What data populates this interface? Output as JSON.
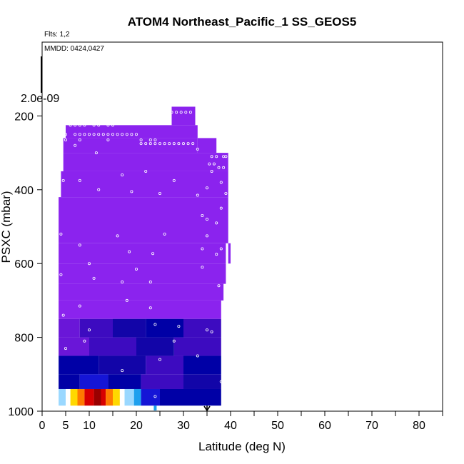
{
  "chart_data": {
    "type": "heatmap",
    "title": "ATOM4 Northeast_Pacific_1 SS_GEOS5",
    "flights_label": "Flts: 1,2",
    "dates_label": "MMDD: 0424,0427",
    "scale_label": "2.0e-09",
    "xlabel": "Latitude (deg N)",
    "ylabel": "PSXC (mbar)",
    "xlim": [
      0,
      85
    ],
    "ylim": [
      1000,
      0
    ],
    "y_reversed": true,
    "grid": false,
    "x_ticks": [
      0,
      5,
      10,
      20,
      30,
      40,
      50,
      60,
      70,
      80
    ],
    "x_minor_ticks": [
      15,
      25,
      35,
      45,
      55,
      65,
      75,
      85
    ],
    "y_ticks": [
      200,
      400,
      600,
      800,
      1000
    ],
    "palette": {
      "violet": "#8b23ee",
      "purple": "#6a16d8",
      "indigo": "#3d0bc0",
      "navy": "#1205a8",
      "darkblue": "#0000a6",
      "blue": "#1515d6",
      "sky": "#1ea0ee",
      "lightblue": "#9ad8ff",
      "white": "#ffffff",
      "yellow": "#ffd800",
      "orange": "#ff7a00",
      "red": "#d80000",
      "darkred": "#9a0000"
    },
    "cells": [
      {
        "x0": 27.5,
        "x1": 32.5,
        "y0": 175,
        "y1": 225,
        "c": "violet"
      },
      {
        "x0": 5,
        "x1": 27.5,
        "y0": 225,
        "y1": 260,
        "c": "violet"
      },
      {
        "x0": 27.5,
        "x1": 33,
        "y0": 225,
        "y1": 260,
        "c": "violet"
      },
      {
        "x0": 4.5,
        "x1": 33,
        "y0": 260,
        "y1": 300,
        "c": "violet"
      },
      {
        "x0": 33,
        "x1": 37,
        "y0": 260,
        "y1": 300,
        "c": "violet"
      },
      {
        "x0": 4.5,
        "x1": 39.5,
        "y0": 300,
        "y1": 350,
        "c": "violet"
      },
      {
        "x0": 4,
        "x1": 39.5,
        "y0": 350,
        "y1": 420,
        "c": "violet"
      },
      {
        "x0": 3.5,
        "x1": 39.5,
        "y0": 420,
        "y1": 500,
        "c": "violet"
      },
      {
        "x0": 3.5,
        "x1": 39.5,
        "y0": 500,
        "y1": 545,
        "c": "violet"
      },
      {
        "x0": 39.5,
        "x1": 40,
        "y0": 545,
        "y1": 600,
        "c": "violet"
      },
      {
        "x0": 3.5,
        "x1": 39,
        "y0": 545,
        "y1": 600,
        "c": "violet"
      },
      {
        "x0": 3.5,
        "x1": 39,
        "y0": 600,
        "y1": 655,
        "c": "violet"
      },
      {
        "x0": 3.5,
        "x1": 38.5,
        "y0": 655,
        "y1": 700,
        "c": "violet"
      },
      {
        "x0": 3.5,
        "x1": 38,
        "y0": 700,
        "y1": 750,
        "c": "violet"
      },
      {
        "x0": 3.5,
        "x1": 8,
        "y0": 750,
        "y1": 800,
        "c": "purple"
      },
      {
        "x0": 8,
        "x1": 15,
        "y0": 750,
        "y1": 800,
        "c": "indigo"
      },
      {
        "x0": 15,
        "x1": 22,
        "y0": 750,
        "y1": 800,
        "c": "navy"
      },
      {
        "x0": 22,
        "x1": 30,
        "y0": 750,
        "y1": 800,
        "c": "darkblue"
      },
      {
        "x0": 30,
        "x1": 38,
        "y0": 750,
        "y1": 800,
        "c": "indigo"
      },
      {
        "x0": 3.5,
        "x1": 10,
        "y0": 800,
        "y1": 850,
        "c": "purple"
      },
      {
        "x0": 10,
        "x1": 20,
        "y0": 800,
        "y1": 850,
        "c": "indigo"
      },
      {
        "x0": 20,
        "x1": 28,
        "y0": 800,
        "y1": 850,
        "c": "navy"
      },
      {
        "x0": 28,
        "x1": 38,
        "y0": 800,
        "y1": 850,
        "c": "indigo"
      },
      {
        "x0": 3.5,
        "x1": 12,
        "y0": 850,
        "y1": 900,
        "c": "darkblue"
      },
      {
        "x0": 12,
        "x1": 22,
        "y0": 850,
        "y1": 900,
        "c": "navy"
      },
      {
        "x0": 22,
        "x1": 30,
        "y0": 850,
        "y1": 900,
        "c": "indigo"
      },
      {
        "x0": 30,
        "x1": 38,
        "y0": 850,
        "y1": 900,
        "c": "darkblue"
      },
      {
        "x0": 3.5,
        "x1": 8,
        "y0": 900,
        "y1": 940,
        "c": "darkblue"
      },
      {
        "x0": 8,
        "x1": 14,
        "y0": 900,
        "y1": 940,
        "c": "blue"
      },
      {
        "x0": 14,
        "x1": 21,
        "y0": 900,
        "y1": 940,
        "c": "darkblue"
      },
      {
        "x0": 21,
        "x1": 30,
        "y0": 900,
        "y1": 940,
        "c": "indigo"
      },
      {
        "x0": 30,
        "x1": 38,
        "y0": 900,
        "y1": 940,
        "c": "navy"
      },
      {
        "x0": 3.5,
        "x1": 5,
        "y0": 940,
        "y1": 985,
        "c": "lightblue"
      },
      {
        "x0": 5,
        "x1": 6,
        "y0": 940,
        "y1": 985,
        "c": "white"
      },
      {
        "x0": 6,
        "x1": 7.5,
        "y0": 940,
        "y1": 985,
        "c": "yellow"
      },
      {
        "x0": 7.5,
        "x1": 9,
        "y0": 940,
        "y1": 985,
        "c": "orange"
      },
      {
        "x0": 9,
        "x1": 11,
        "y0": 940,
        "y1": 985,
        "c": "red"
      },
      {
        "x0": 11,
        "x1": 12.5,
        "y0": 940,
        "y1": 985,
        "c": "darkred"
      },
      {
        "x0": 12.5,
        "x1": 13.5,
        "y0": 940,
        "y1": 985,
        "c": "red"
      },
      {
        "x0": 13.5,
        "x1": 15,
        "y0": 940,
        "y1": 985,
        "c": "orange"
      },
      {
        "x0": 15,
        "x1": 16.5,
        "y0": 940,
        "y1": 985,
        "c": "yellow"
      },
      {
        "x0": 16.5,
        "x1": 17.5,
        "y0": 940,
        "y1": 985,
        "c": "white"
      },
      {
        "x0": 17.5,
        "x1": 19.5,
        "y0": 940,
        "y1": 985,
        "c": "lightblue"
      },
      {
        "x0": 19.5,
        "x1": 21,
        "y0": 940,
        "y1": 985,
        "c": "sky"
      },
      {
        "x0": 21,
        "x1": 25,
        "y0": 940,
        "y1": 985,
        "c": "blue"
      },
      {
        "x0": 25,
        "x1": 38,
        "y0": 940,
        "y1": 985,
        "c": "darkblue"
      }
    ],
    "points": [
      [
        27.5,
        190
      ],
      [
        28.5,
        190
      ],
      [
        29.5,
        190
      ],
      [
        30.5,
        190
      ],
      [
        31.5,
        190
      ],
      [
        27,
        210
      ],
      [
        6,
        225
      ],
      [
        7,
        225
      ],
      [
        8,
        225
      ],
      [
        9,
        225
      ],
      [
        11,
        225
      ],
      [
        12,
        225
      ],
      [
        14,
        225
      ],
      [
        15,
        225
      ],
      [
        5,
        250
      ],
      [
        7,
        250
      ],
      [
        8,
        250
      ],
      [
        9,
        250
      ],
      [
        10,
        250
      ],
      [
        11,
        250
      ],
      [
        12,
        250
      ],
      [
        13,
        250
      ],
      [
        14,
        250
      ],
      [
        15,
        250
      ],
      [
        16,
        250
      ],
      [
        17,
        250
      ],
      [
        18,
        250
      ],
      [
        19,
        250
      ],
      [
        20,
        250
      ],
      [
        5,
        265
      ],
      [
        8,
        265
      ],
      [
        14,
        265
      ],
      [
        21,
        265
      ],
      [
        23,
        265
      ],
      [
        24,
        265
      ],
      [
        21,
        275
      ],
      [
        22,
        275
      ],
      [
        23,
        275
      ],
      [
        24,
        275
      ],
      [
        25,
        275
      ],
      [
        26,
        275
      ],
      [
        27,
        275
      ],
      [
        28,
        275
      ],
      [
        29,
        275
      ],
      [
        30,
        275
      ],
      [
        31,
        275
      ],
      [
        32,
        275
      ],
      [
        7,
        280
      ],
      [
        33,
        290
      ],
      [
        36,
        310
      ],
      [
        37,
        310
      ],
      [
        38.5,
        310
      ],
      [
        39,
        310
      ],
      [
        11.5,
        300
      ],
      [
        35.5,
        330
      ],
      [
        36.5,
        330
      ],
      [
        37.5,
        340
      ],
      [
        38.5,
        340
      ],
      [
        22,
        350
      ],
      [
        36,
        350
      ],
      [
        17,
        360
      ],
      [
        4.5,
        375
      ],
      [
        8,
        375
      ],
      [
        28,
        375
      ],
      [
        38,
        380
      ],
      [
        35,
        395
      ],
      [
        12,
        400
      ],
      [
        19,
        405
      ],
      [
        25,
        410
      ],
      [
        33,
        415
      ],
      [
        39,
        410
      ],
      [
        38,
        450
      ],
      [
        34,
        470
      ],
      [
        35,
        480
      ],
      [
        37,
        490
      ],
      [
        4,
        520
      ],
      [
        26,
        520
      ],
      [
        16,
        525
      ],
      [
        35,
        525
      ],
      [
        8,
        550
      ],
      [
        34,
        560
      ],
      [
        38,
        560
      ],
      [
        18.5,
        568
      ],
      [
        23.5,
        573
      ],
      [
        37,
        575
      ],
      [
        10,
        600
      ],
      [
        34,
        610
      ],
      [
        20,
        615
      ],
      [
        4,
        630
      ],
      [
        11,
        640
      ],
      [
        17,
        650
      ],
      [
        23,
        650
      ],
      [
        37.5,
        660
      ],
      [
        18,
        700
      ],
      [
        8,
        715
      ],
      [
        23,
        720
      ],
      [
        4.5,
        740
      ],
      [
        24,
        765
      ],
      [
        29,
        770
      ],
      [
        10,
        780
      ],
      [
        35,
        780
      ],
      [
        36,
        785
      ],
      [
        9,
        810
      ],
      [
        28,
        810
      ],
      [
        5,
        830
      ],
      [
        33,
        850
      ],
      [
        25,
        860
      ],
      [
        17,
        890
      ],
      [
        38,
        920
      ],
      [
        24,
        960
      ]
    ],
    "markers": [
      {
        "x": 24,
        "kind": "bar",
        "c": "sky"
      },
      {
        "x": 35,
        "kind": "arrow",
        "c": "black"
      }
    ]
  }
}
